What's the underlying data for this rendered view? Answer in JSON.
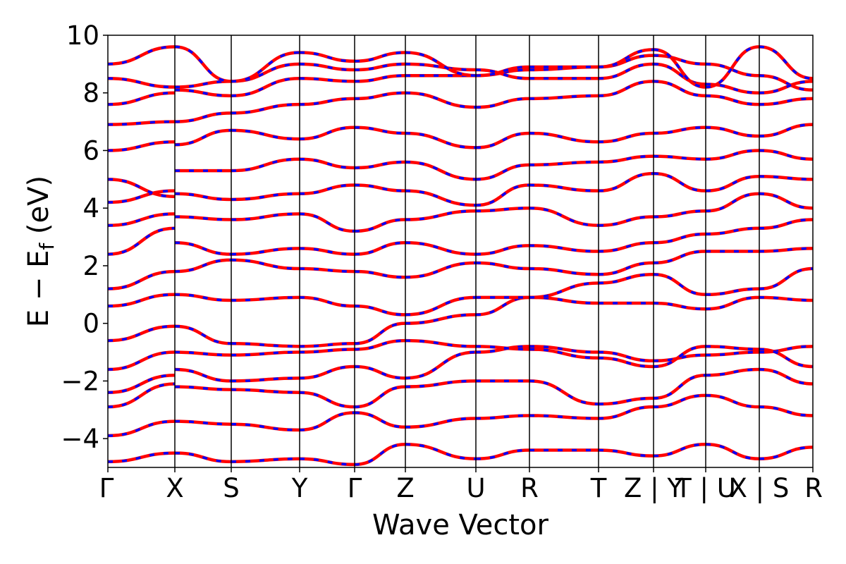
{
  "chart_data": {
    "type": "line",
    "xlabel": "Wave Vector",
    "ylabel_parts": [
      "E − E",
      "f",
      " (eV)"
    ],
    "ylim": [
      -5,
      10
    ],
    "yticks": [
      -4,
      -2,
      0,
      2,
      4,
      6,
      8,
      10
    ],
    "ytick_labels": [
      "−4",
      "−2",
      "0",
      "2",
      "4",
      "6",
      "8",
      "10"
    ],
    "kpoint_labels": [
      "Γ",
      "X",
      "S",
      "Y",
      "Γ",
      "Z",
      "U",
      "R",
      "T",
      "Z | Y",
      "T | U",
      "X | S",
      "R"
    ],
    "kpoint_positions": [
      0,
      0.95,
      1.75,
      2.72,
      3.5,
      4.22,
      5.22,
      5.98,
      6.96,
      7.74,
      8.48,
      9.24,
      10.0
    ],
    "path_segments": [
      [
        0,
        0.95
      ],
      [
        0.95,
        1.75
      ],
      [
        1.75,
        2.72
      ],
      [
        2.72,
        3.5
      ],
      [
        3.5,
        4.22
      ],
      [
        4.22,
        5.22
      ],
      [
        5.22,
        5.98
      ],
      [
        5.98,
        6.96
      ],
      [
        6.96,
        7.74
      ],
      [
        7.74,
        8.48
      ],
      [
        8.48,
        9.24
      ],
      [
        9.24,
        10.0
      ]
    ],
    "grid": false,
    "series": [
      {
        "color": "#ff0000",
        "style": "solid"
      },
      {
        "color": "#0000ff",
        "style": "dashed"
      }
    ],
    "segment_energies": [
      [
        [
          -4.8,
          -4.5
        ],
        [
          -3.9,
          -3.4
        ],
        [
          -2.9,
          -2.1
        ],
        [
          -2.4,
          -1.8
        ],
        [
          -1.6,
          -1.0
        ],
        [
          -0.6,
          -0.1
        ],
        [
          0.6,
          1.0
        ],
        [
          1.2,
          1.8
        ],
        [
          2.4,
          3.3
        ],
        [
          3.4,
          3.8
        ],
        [
          4.2,
          4.6
        ],
        [
          5.0,
          4.4
        ],
        [
          6.0,
          6.3
        ],
        [
          6.9,
          7.0
        ],
        [
          7.6,
          8.0
        ],
        [
          8.5,
          8.2
        ],
        [
          9.0,
          9.6
        ]
      ],
      [
        [
          -4.5,
          -4.8
        ],
        [
          -3.4,
          -3.5
        ],
        [
          -2.2,
          -2.3
        ],
        [
          -1.6,
          -2.0
        ],
        [
          -1.0,
          -1.1
        ],
        [
          -0.1,
          -0.7
        ],
        [
          1.0,
          0.8
        ],
        [
          1.8,
          2.2
        ],
        [
          2.8,
          2.4
        ],
        [
          3.7,
          3.6
        ],
        [
          4.5,
          4.3
        ],
        [
          5.3,
          5.3
        ],
        [
          6.2,
          6.7
        ],
        [
          7.0,
          7.3
        ],
        [
          8.1,
          7.9
        ],
        [
          8.2,
          8.4
        ],
        [
          9.6,
          8.4
        ]
      ],
      [
        [
          -4.8,
          -4.7
        ],
        [
          -3.5,
          -3.7
        ],
        [
          -2.3,
          -2.4
        ],
        [
          -2.0,
          -1.9
        ],
        [
          -1.1,
          -1.0
        ],
        [
          -0.7,
          -0.8
        ],
        [
          0.8,
          0.9
        ],
        [
          2.2,
          1.9
        ],
        [
          2.4,
          2.6
        ],
        [
          3.6,
          3.8
        ],
        [
          4.3,
          4.5
        ],
        [
          5.3,
          5.7
        ],
        [
          6.7,
          6.4
        ],
        [
          7.3,
          7.6
        ],
        [
          7.9,
          8.5
        ],
        [
          8.4,
          9.0
        ],
        [
          8.4,
          9.4
        ]
      ],
      [
        [
          -4.7,
          -4.9
        ],
        [
          -3.7,
          -3.1
        ],
        [
          -2.4,
          -2.9
        ],
        [
          -1.9,
          -1.5
        ],
        [
          -1.0,
          -0.9
        ],
        [
          -0.8,
          -0.7
        ],
        [
          0.9,
          0.6
        ],
        [
          1.9,
          1.8
        ],
        [
          2.6,
          2.4
        ],
        [
          3.8,
          3.2
        ],
        [
          4.5,
          4.8
        ],
        [
          5.7,
          5.4
        ],
        [
          6.4,
          6.8
        ],
        [
          7.6,
          7.8
        ],
        [
          8.5,
          8.4
        ],
        [
          9.0,
          8.8
        ],
        [
          9.4,
          9.1
        ]
      ],
      [
        [
          -4.9,
          -4.2
        ],
        [
          -3.1,
          -3.6
        ],
        [
          -2.9,
          -2.2
        ],
        [
          -1.5,
          -1.9
        ],
        [
          -0.9,
          -0.6
        ],
        [
          -0.7,
          0.0
        ],
        [
          0.6,
          0.3
        ],
        [
          1.8,
          1.6
        ],
        [
          2.4,
          2.8
        ],
        [
          3.2,
          3.6
        ],
        [
          4.8,
          4.6
        ],
        [
          5.4,
          5.6
        ],
        [
          6.8,
          6.6
        ],
        [
          7.8,
          8.0
        ],
        [
          8.4,
          8.6
        ],
        [
          8.8,
          9.0
        ],
        [
          9.1,
          9.4
        ]
      ],
      [
        [
          -4.2,
          -4.7
        ],
        [
          -3.6,
          -3.3
        ],
        [
          -2.2,
          -2.0
        ],
        [
          -1.9,
          -1.0
        ],
        [
          -0.6,
          -0.8
        ],
        [
          0.0,
          0.3
        ],
        [
          0.3,
          0.9
        ],
        [
          1.6,
          2.1
        ],
        [
          2.8,
          2.4
        ],
        [
          3.6,
          3.9
        ],
        [
          4.6,
          4.1
        ],
        [
          5.6,
          5.0
        ],
        [
          6.6,
          6.1
        ],
        [
          8.0,
          7.5
        ],
        [
          8.6,
          8.6
        ],
        [
          9.0,
          8.8
        ],
        [
          9.4,
          8.6
        ]
      ],
      [
        [
          -4.7,
          -4.4
        ],
        [
          -3.3,
          -3.2
        ],
        [
          -2.0,
          -2.0
        ],
        [
          -1.0,
          -0.8
        ],
        [
          -0.8,
          -0.9
        ],
        [
          0.3,
          0.9
        ],
        [
          0.9,
          0.9
        ],
        [
          2.1,
          1.9
        ],
        [
          2.4,
          2.7
        ],
        [
          3.9,
          4.0
        ],
        [
          4.1,
          4.8
        ],
        [
          5.0,
          5.5
        ],
        [
          6.1,
          6.6
        ],
        [
          7.5,
          7.8
        ],
        [
          8.6,
          8.8
        ],
        [
          8.8,
          8.5
        ],
        [
          8.6,
          8.9
        ]
      ],
      [
        [
          -4.4,
          -4.4
        ],
        [
          -3.2,
          -3.3
        ],
        [
          -2.0,
          -2.8
        ],
        [
          -0.8,
          -1.0
        ],
        [
          -0.9,
          -1.2
        ],
        [
          0.9,
          0.7
        ],
        [
          0.9,
          1.4
        ],
        [
          1.9,
          1.7
        ],
        [
          2.7,
          2.5
        ],
        [
          4.0,
          3.4
        ],
        [
          4.8,
          4.6
        ],
        [
          5.5,
          5.6
        ],
        [
          6.6,
          6.3
        ],
        [
          7.8,
          7.9
        ],
        [
          8.8,
          8.9
        ],
        [
          8.5,
          8.5
        ],
        [
          8.9,
          8.9
        ]
      ],
      [
        [
          -4.4,
          -4.6
        ],
        [
          -3.3,
          -2.9
        ],
        [
          -2.8,
          -2.6
        ],
        [
          -1.0,
          -1.3
        ],
        [
          -1.2,
          -1.5
        ],
        [
          0.7,
          0.7
        ],
        [
          1.4,
          1.7
        ],
        [
          1.7,
          2.1
        ],
        [
          2.5,
          2.8
        ],
        [
          3.4,
          3.7
        ],
        [
          4.6,
          5.2
        ],
        [
          5.6,
          5.8
        ],
        [
          6.3,
          6.6
        ],
        [
          7.9,
          8.4
        ],
        [
          8.9,
          9.3
        ],
        [
          8.5,
          9.0
        ],
        [
          8.9,
          9.5
        ]
      ],
      [
        [
          -4.6,
          -4.2
        ],
        [
          -2.9,
          -2.5
        ],
        [
          -2.6,
          -1.8
        ],
        [
          -1.3,
          -1.1
        ],
        [
          -1.5,
          -0.8
        ],
        [
          0.7,
          0.5
        ],
        [
          1.7,
          1.0
        ],
        [
          2.1,
          2.5
        ],
        [
          2.8,
          3.1
        ],
        [
          3.7,
          3.9
        ],
        [
          5.2,
          4.6
        ],
        [
          5.8,
          5.7
        ],
        [
          6.6,
          6.8
        ],
        [
          8.4,
          7.9
        ],
        [
          9.3,
          9.0
        ],
        [
          9.0,
          8.3
        ],
        [
          9.5,
          8.2
        ]
      ],
      [
        [
          -4.2,
          -4.7
        ],
        [
          -2.5,
          -2.9
        ],
        [
          -1.8,
          -1.6
        ],
        [
          -1.1,
          -1.0
        ],
        [
          -0.8,
          -0.9
        ],
        [
          0.5,
          0.9
        ],
        [
          1.0,
          1.2
        ],
        [
          2.5,
          2.5
        ],
        [
          3.1,
          3.3
        ],
        [
          3.9,
          4.5
        ],
        [
          4.6,
          5.1
        ],
        [
          5.7,
          6.0
        ],
        [
          6.8,
          6.5
        ],
        [
          7.9,
          7.6
        ],
        [
          9.0,
          8.6
        ],
        [
          8.3,
          8.0
        ],
        [
          8.2,
          9.6
        ]
      ],
      [
        [
          -4.7,
          -4.3
        ],
        [
          -2.9,
          -3.2
        ],
        [
          -1.6,
          -2.1
        ],
        [
          -1.0,
          -0.8
        ],
        [
          -0.9,
          -1.5
        ],
        [
          0.9,
          0.8
        ],
        [
          1.2,
          1.9
        ],
        [
          2.5,
          2.6
        ],
        [
          3.3,
          3.6
        ],
        [
          4.5,
          4.0
        ],
        [
          5.1,
          5.0
        ],
        [
          6.0,
          5.7
        ],
        [
          6.5,
          6.9
        ],
        [
          7.6,
          7.8
        ],
        [
          8.6,
          8.1
        ],
        [
          8.0,
          8.4
        ],
        [
          9.6,
          8.5
        ]
      ]
    ]
  }
}
